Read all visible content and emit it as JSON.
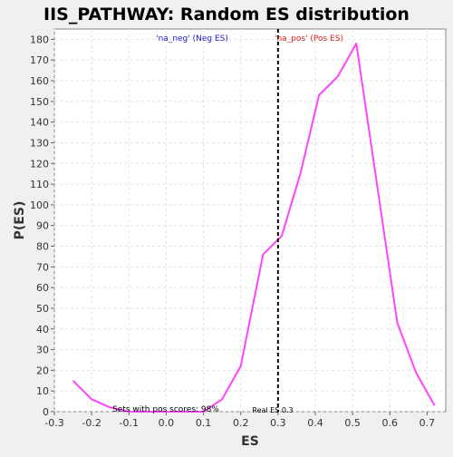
{
  "chart_data": {
    "type": "line",
    "title": "IIS_PATHWAY: Random ES distribution",
    "xlabel": "ES",
    "ylabel": "P(ES)",
    "xlim": [
      -0.3,
      0.75
    ],
    "ylim": [
      0,
      185
    ],
    "x_ticks": [
      -0.3,
      -0.2,
      -0.1,
      0.0,
      0.1,
      0.2,
      0.3,
      0.4,
      0.5,
      0.6,
      0.7
    ],
    "y_ticks": [
      0,
      10,
      20,
      30,
      40,
      50,
      60,
      70,
      80,
      90,
      100,
      110,
      120,
      130,
      140,
      150,
      160,
      170,
      180
    ],
    "grid": true,
    "series": [
      {
        "color": "#ff44ff",
        "x": [
          -0.25,
          -0.2,
          -0.15,
          -0.1,
          -0.05,
          0.0,
          0.05,
          0.1,
          0.15,
          0.2,
          0.26,
          0.31,
          0.36,
          0.41,
          0.46,
          0.51,
          0.62,
          0.67,
          0.72
        ],
        "y": [
          15,
          6,
          2,
          0,
          0,
          0,
          0,
          0,
          6,
          22,
          76,
          85,
          115,
          153,
          162,
          178,
          43,
          19,
          3
        ]
      }
    ],
    "real_es": 0.3,
    "annotations": {
      "neg_label": "'na_neg' (Neg ES)",
      "pos_label": "'na_pos' (Pos ES)",
      "pos_scores": "Sets with pos scores: 98%",
      "real_es": "Real ES 0.3"
    },
    "colors": {
      "neg_label": "#2222cc",
      "pos_label": "#dd2222",
      "line": "#ff44ff",
      "marker_line": "#000000"
    }
  }
}
